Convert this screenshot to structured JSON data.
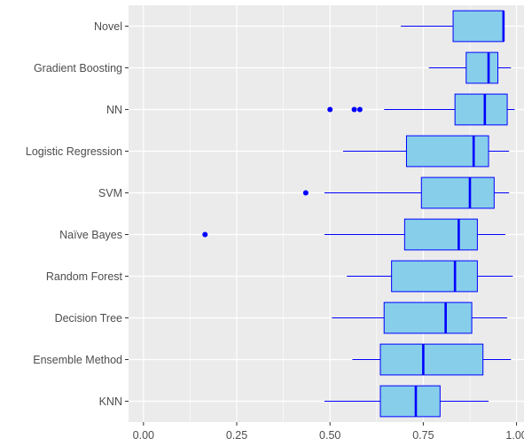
{
  "chart_data": {
    "type": "boxplot",
    "orientation": "horizontal",
    "xlim": [
      -0.04,
      1.02
    ],
    "x_ticks": [
      0.0,
      0.25,
      0.5,
      0.75,
      1.0
    ],
    "x_tick_labels": [
      "0.00",
      "0.25",
      "0.50",
      "0.75",
      "1.00"
    ],
    "grid": true,
    "colors": {
      "panel": "#ebebeb",
      "grid": "#ffffff",
      "box_fill": "#87ceeb",
      "box_stroke": "#0000ff",
      "outlier": "#0000ff"
    },
    "categories": [
      "Novel",
      "Gradient Boosting",
      "NN",
      "Logistic Regression",
      "SVM",
      "Naïve Bayes",
      "Random Forest",
      "Decision Tree",
      "Ensemble Method",
      "KNN"
    ],
    "series": [
      {
        "whisker_low": 0.69,
        "q1": 0.83,
        "median": 0.965,
        "q3": 0.965,
        "whisker_high": 0.965,
        "outliers": []
      },
      {
        "whisker_low": 0.765,
        "q1": 0.865,
        "median": 0.925,
        "q3": 0.95,
        "whisker_high": 0.985,
        "outliers": []
      },
      {
        "whisker_low": 0.645,
        "q1": 0.835,
        "median": 0.915,
        "q3": 0.975,
        "whisker_high": 0.995,
        "outliers": [
          0.5,
          0.565,
          0.58
        ]
      },
      {
        "whisker_low": 0.535,
        "q1": 0.705,
        "median": 0.885,
        "q3": 0.925,
        "whisker_high": 0.98,
        "outliers": []
      },
      {
        "whisker_low": 0.485,
        "q1": 0.745,
        "median": 0.875,
        "q3": 0.94,
        "whisker_high": 0.98,
        "outliers": [
          0.435
        ]
      },
      {
        "whisker_low": 0.485,
        "q1": 0.7,
        "median": 0.845,
        "q3": 0.895,
        "whisker_high": 0.97,
        "outliers": [
          0.165
        ]
      },
      {
        "whisker_low": 0.545,
        "q1": 0.665,
        "median": 0.835,
        "q3": 0.895,
        "whisker_high": 0.99,
        "outliers": []
      },
      {
        "whisker_low": 0.505,
        "q1": 0.645,
        "median": 0.81,
        "q3": 0.88,
        "whisker_high": 0.975,
        "outliers": []
      },
      {
        "whisker_low": 0.56,
        "q1": 0.635,
        "median": 0.75,
        "q3": 0.91,
        "whisker_high": 0.985,
        "outliers": []
      },
      {
        "whisker_low": 0.485,
        "q1": 0.635,
        "median": 0.73,
        "q3": 0.795,
        "whisker_high": 0.925,
        "outliers": []
      }
    ]
  }
}
